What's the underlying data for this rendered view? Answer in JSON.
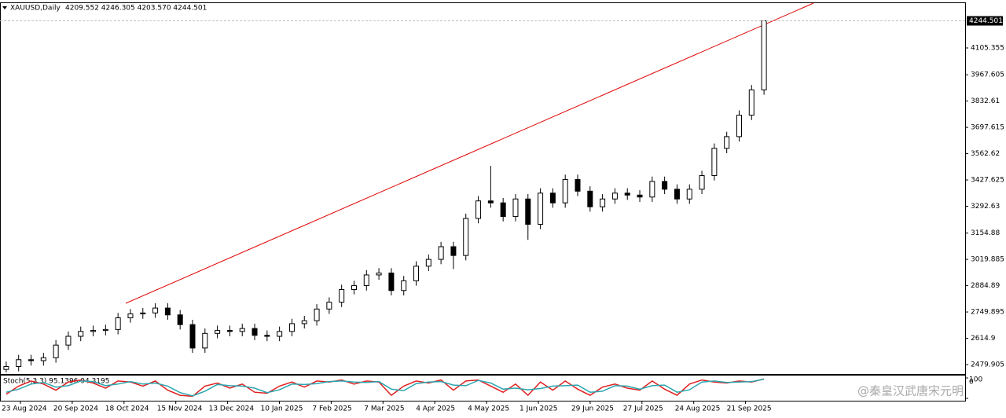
{
  "chart_data": [
    {
      "type": "candlestick",
      "symbol": "XAUUSD,Daily",
      "ohlc_header": "4209.552 4246.305 4203.570 4244.501",
      "open": [
        2455,
        2470,
        2505,
        2500,
        2515,
        2580,
        2625,
        2650,
        2655,
        2660,
        2720,
        2740,
        2745,
        2770,
        2735,
        2685,
        2565,
        2640,
        2655,
        2650,
        2665,
        2630,
        2625,
        2650,
        2690,
        2705,
        2765,
        2800,
        2865,
        2885,
        2940,
        2950,
        2860,
        2910,
        2985,
        3020,
        3085,
        3040,
        3230,
        3320,
        3310,
        3240,
        3330,
        3200,
        3360,
        3310,
        3430,
        3370,
        3290,
        3330,
        3360,
        3350,
        3340,
        3420,
        3380,
        3330,
        3380,
        3450,
        3590,
        3650,
        3760,
        3890
      ],
      "high": [
        2495,
        2530,
        2530,
        2540,
        2605,
        2650,
        2675,
        2680,
        2685,
        2745,
        2765,
        2770,
        2795,
        2795,
        2760,
        2710,
        2665,
        2680,
        2680,
        2690,
        2690,
        2655,
        2675,
        2715,
        2730,
        2790,
        2825,
        2890,
        2910,
        2965,
        2975,
        2975,
        2935,
        3010,
        3045,
        3110,
        3110,
        3255,
        3345,
        3500,
        3335,
        3355,
        3355,
        3385,
        3385,
        3455,
        3455,
        3395,
        3355,
        3385,
        3385,
        3375,
        3445,
        3445,
        3405,
        3405,
        3475,
        3615,
        3675,
        3785,
        3915,
        4246.305
      ],
      "low": [
        2440,
        2445,
        2475,
        2475,
        2490,
        2555,
        2600,
        2625,
        2630,
        2635,
        2695,
        2715,
        2720,
        2710,
        2660,
        2540,
        2540,
        2615,
        2625,
        2625,
        2605,
        2600,
        2600,
        2625,
        2665,
        2680,
        2740,
        2775,
        2840,
        2860,
        2915,
        2835,
        2835,
        2885,
        2960,
        2995,
        2970,
        3015,
        3205,
        3285,
        3215,
        3215,
        3120,
        3175,
        3285,
        3285,
        3345,
        3265,
        3265,
        3305,
        3325,
        3315,
        3315,
        3355,
        3305,
        3305,
        3355,
        3425,
        3565,
        3625,
        3735,
        3865
      ],
      "close": [
        2470,
        2505,
        2500,
        2515,
        2580,
        2625,
        2650,
        2655,
        2660,
        2720,
        2740,
        2745,
        2770,
        2735,
        2685,
        2565,
        2640,
        2655,
        2650,
        2665,
        2630,
        2625,
        2650,
        2690,
        2705,
        2765,
        2800,
        2865,
        2885,
        2940,
        2950,
        2860,
        2910,
        2985,
        3020,
        3085,
        3040,
        3230,
        3320,
        3310,
        3240,
        3330,
        3200,
        3360,
        3310,
        3430,
        3370,
        3290,
        3330,
        3360,
        3350,
        3340,
        3420,
        3380,
        3330,
        3380,
        3450,
        3590,
        3650,
        3760,
        3890,
        4244.501
      ],
      "last_price": 4244.501,
      "ylim": [
        2431.5,
        4335.3
      ],
      "yticks": [
        4105.355,
        3967.605,
        3832.61,
        3697.615,
        3562.62,
        3427.625,
        3292.63,
        3154.88,
        3019.885,
        2884.89,
        2749.895,
        2614.9,
        2479.905
      ],
      "x_labels": [
        "23 Aug 2024",
        "20 Sep 2024",
        "18 Oct 2024",
        "15 Nov 2024",
        "13 Dec 2024",
        "10 Jan 2025",
        "7 Feb 2025",
        "7 Mar 2025",
        "4 Apr 2025",
        "4 May 2025",
        "1 Jun 2025",
        "29 Jun 2025",
        "27 Jul 2025",
        "24 Aug 2025",
        "21 Sep 2025"
      ],
      "watermark": "@秦皇汉武唐宋元明"
    },
    {
      "type": "line",
      "title": "Stoch(5,3,3) 95.1396 94.3195",
      "series": [
        {
          "color": "#e02020",
          "values": [
            20,
            60,
            85,
            70,
            40,
            80,
            90,
            75,
            50,
            85,
            80,
            60,
            85,
            40,
            15,
            10,
            60,
            75,
            50,
            70,
            30,
            25,
            60,
            80,
            55,
            85,
            80,
            90,
            70,
            85,
            80,
            15,
            60,
            85,
            75,
            90,
            40,
            85,
            90,
            60,
            30,
            70,
            15,
            80,
            40,
            85,
            45,
            15,
            55,
            70,
            50,
            40,
            85,
            45,
            15,
            70,
            90,
            80,
            75,
            85,
            80,
            95.1396
          ]
        },
        {
          "color": "#2aa6b0",
          "values": [
            30,
            45,
            70,
            78,
            55,
            62,
            85,
            82,
            62,
            70,
            82,
            70,
            75,
            60,
            28,
            12,
            35,
            68,
            62,
            60,
            50,
            28,
            42,
            70,
            68,
            72,
            82,
            85,
            80,
            78,
            82,
            45,
            38,
            72,
            80,
            82,
            65,
            62,
            88,
            75,
            45,
            50,
            42,
            48,
            60,
            62,
            65,
            30,
            35,
            62,
            60,
            45,
            62,
            65,
            30,
            42,
            80,
            85,
            78,
            80,
            82,
            94.3195
          ]
        }
      ],
      "ylim": [
        0,
        100
      ],
      "yticks": [
        0,
        100
      ]
    }
  ]
}
